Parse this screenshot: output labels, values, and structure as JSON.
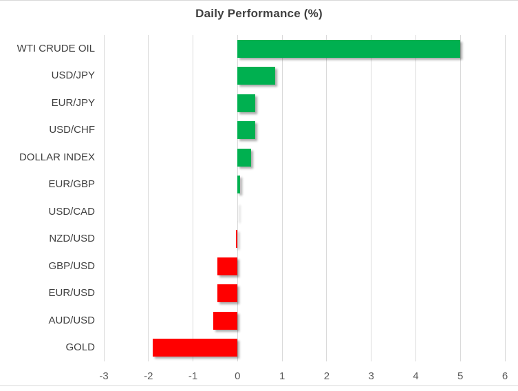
{
  "chart_data": {
    "type": "bar",
    "orientation": "horizontal",
    "title": "Daily Performance (%)",
    "categories": [
      "WTI CRUDE OIL",
      "USD/JPY",
      "EUR/JPY",
      "USD/CHF",
      "DOLLAR INDEX",
      "EUR/GBP",
      "USD/CAD",
      "NZD/USD",
      "GBP/USD",
      "EUR/USD",
      "AUD/USD",
      "GOLD"
    ],
    "values": [
      5.0,
      0.85,
      0.4,
      0.4,
      0.3,
      0.05,
      0.0,
      -0.03,
      -0.45,
      -0.45,
      -0.55,
      -1.9
    ],
    "xlabel": "",
    "ylabel": "",
    "xlim": [
      -3,
      6
    ],
    "xticks": [
      -3,
      -2,
      -1,
      0,
      1,
      2,
      3,
      4,
      5,
      6
    ],
    "grid": true,
    "legend": false,
    "colors": {
      "positive": "#00B050",
      "negative": "#FF0000",
      "gridline": "#D9D9D9",
      "title_text": "#404040",
      "category_text": "#404040",
      "tick_text": "#595959"
    }
  }
}
